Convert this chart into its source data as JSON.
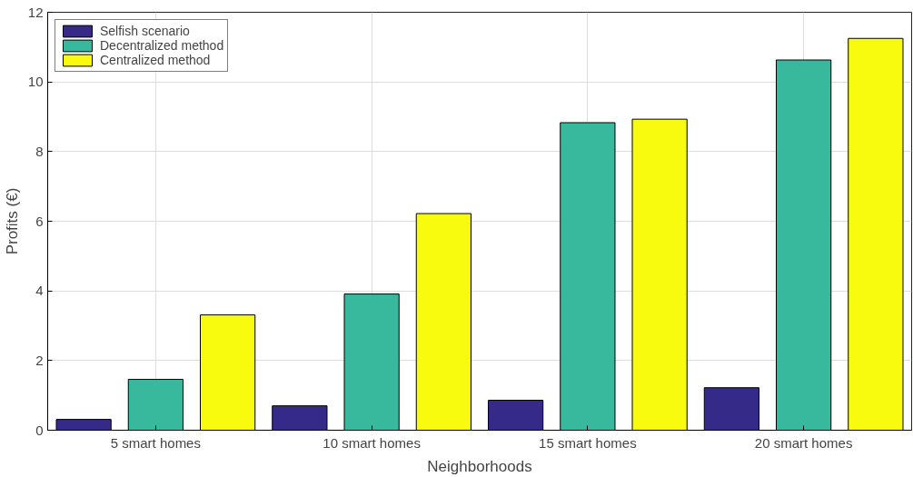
{
  "chart_data": {
    "type": "bar",
    "xlabel": "Neighborhoods",
    "ylabel": "Profits (€)",
    "categories": [
      "5 smart homes",
      "10 smart homes",
      "15 smart homes",
      "20 smart homes"
    ],
    "series": [
      {
        "name": "Selfish scenario",
        "color": "#352a87",
        "values": [
          0.31,
          0.7,
          0.86,
          1.22
        ]
      },
      {
        "name": "Decentralized method",
        "color": "#38b99e",
        "values": [
          1.46,
          3.91,
          8.83,
          10.63
        ]
      },
      {
        "name": "Centralized method",
        "color": "#f9fb0e",
        "values": [
          3.31,
          6.22,
          8.93,
          11.25
        ]
      }
    ],
    "ylim": [
      0,
      12
    ],
    "yticks": [
      0,
      2,
      4,
      6,
      8,
      10,
      12
    ],
    "grid": true,
    "legend": "top left"
  }
}
